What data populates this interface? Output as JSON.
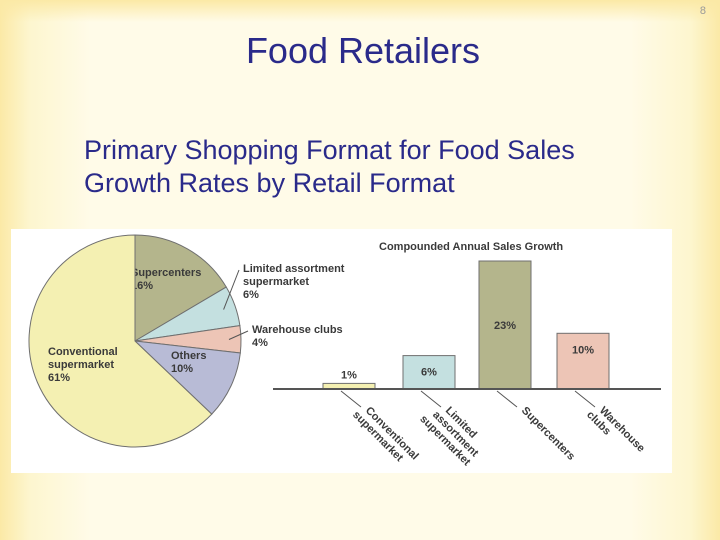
{
  "slide": {
    "number": "8",
    "title": "Food Retailers",
    "subtitle_lines": [
      "Primary Shopping Format for Food Sales",
      "Growth Rates by Retail Format"
    ]
  },
  "colors": {
    "title_text": "#2a2a8a",
    "pie_conventional": "#f4f0b2",
    "pie_supercenters": "#b4b58c",
    "pie_limited": "#c4e0e0",
    "pie_warehouse": "#edc5b6",
    "pie_others": "#b8bbd6",
    "bar_conventional": "#f4f0b2",
    "bar_limited": "#c4e0e0",
    "bar_supercenters": "#b4b58c",
    "bar_warehouse": "#edc5b6"
  },
  "chart_data": [
    {
      "type": "pie",
      "title": "",
      "slices": [
        {
          "name_lines": [
            "Supercenters"
          ],
          "value": 16,
          "value_label": "16%",
          "color_key": "pie_supercenters"
        },
        {
          "name_lines": [
            "Limited assortment",
            "supermarket"
          ],
          "value": 6,
          "value_label": "6%",
          "color_key": "pie_limited"
        },
        {
          "name_lines": [
            "Warehouse clubs"
          ],
          "value": 4,
          "value_label": "4%",
          "color_key": "pie_warehouse"
        },
        {
          "name_lines": [
            "Others"
          ],
          "value": 10,
          "value_label": "10%",
          "color_key": "pie_others"
        },
        {
          "name_lines": [
            "Conventional",
            "supermarket"
          ],
          "value": 61,
          "value_label": "61%",
          "color_key": "pie_conventional"
        }
      ]
    },
    {
      "type": "bar",
      "title": "Compounded Annual Sales Growth",
      "categories": [
        "Conventional supermarket",
        "Limited assortment supermarket",
        "Supercenters",
        "Warehouse clubs"
      ],
      "category_label_lines": [
        [
          "Conventional",
          "supermarket"
        ],
        [
          "Limited",
          "assortment",
          "supermarket"
        ],
        [
          "Supercenters"
        ],
        [
          "Warehouse",
          "clubs"
        ]
      ],
      "values": [
        1,
        6,
        23,
        10
      ],
      "value_labels": [
        "1%",
        "6%",
        "23%",
        "10%"
      ],
      "color_keys": [
        "bar_conventional",
        "bar_limited",
        "bar_supercenters",
        "bar_warehouse"
      ],
      "ylim": [
        0,
        23
      ],
      "grid": false
    }
  ]
}
